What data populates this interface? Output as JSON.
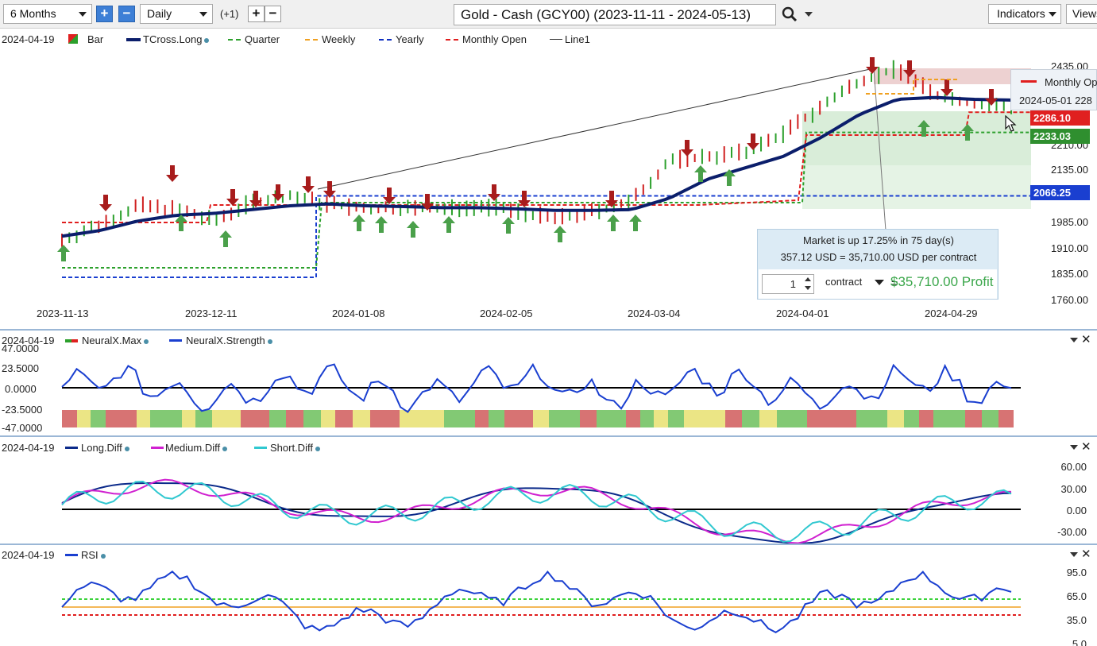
{
  "toolbar": {
    "range": "6 Months",
    "interval": "Daily",
    "offset": "(+1)",
    "symbol": "Gold - Cash (GCY00) (2023-11-11 - 2024-05-13)",
    "indicators": "Indicators",
    "view": "Views"
  },
  "main_legend": {
    "date": "2024-04-19",
    "items": [
      {
        "label": "Bar",
        "color": "#2ca02c"
      },
      {
        "label": "TCross.Long",
        "color": "#0b1e6b"
      },
      {
        "label": "Quarter",
        "color": "#2ca02c"
      },
      {
        "label": "Weekly",
        "color": "#f0a020"
      },
      {
        "label": "Yearly",
        "color": "#1030c0"
      },
      {
        "label": "Monthly Open",
        "color": "#e01e1e"
      },
      {
        "label": "Line1",
        "color": "#333333"
      }
    ]
  },
  "price_axis": [
    "2435.00",
    "2210.00",
    "2135.00",
    "1985.00",
    "1910.00",
    "1835.00",
    "1760.00"
  ],
  "price_badges": [
    {
      "value": "2286.10",
      "color": "#e02020"
    },
    {
      "value": "2233.03",
      "color": "#2f8f2f"
    },
    {
      "value": "2066.25",
      "color": "#1a3fd0"
    }
  ],
  "date_axis": [
    "2023-11-13",
    "2023-12-11",
    "2024-01-08",
    "2024-02-05",
    "2024-03-04",
    "2024-04-01",
    "2024-04-29"
  ],
  "info_box": {
    "line1": "Market is up 17.25% in 75 day(s)",
    "line2": "357.12 USD = 35,710.00 USD per contract",
    "quantity": "1",
    "unit": "contract",
    "equals": "=",
    "profit": "$35,710.00 Profit"
  },
  "monthly_popup": {
    "title": "Monthly Op",
    "line2": "2024-05-01  228"
  },
  "neural_pane": {
    "date": "2024-04-19",
    "series": [
      {
        "label": "NeuralX.Max",
        "color": "#2ca02c"
      },
      {
        "label": "NeuralX.Strength",
        "color": "#1a3fd0"
      }
    ],
    "axis": [
      "47.0000",
      "23.5000",
      "0.0000",
      "-23.5000",
      "-47.0000"
    ]
  },
  "diff_pane": {
    "date": "2024-04-19",
    "series": [
      {
        "label": "Long.Diff",
        "color": "#0b2a8a"
      },
      {
        "label": "Medium.Diff",
        "color": "#d020d0"
      },
      {
        "label": "Short.Diff",
        "color": "#30c8d0"
      }
    ],
    "axis": [
      "60.00",
      "30.00",
      "0.00",
      "-30.00"
    ]
  },
  "rsi_pane": {
    "date": "2024-04-19",
    "series": [
      {
        "label": "RSI",
        "color": "#1a3fd0"
      }
    ],
    "axis": [
      "95.0",
      "65.0",
      "35.0",
      "5.0"
    ]
  },
  "chart_data": {
    "type": "line",
    "title": "Gold - Cash (GCY00) (2023-11-11 - 2024-05-13)",
    "price": {
      "x": [
        "2023-11-13",
        "2023-11-20",
        "2023-11-27",
        "2023-12-04",
        "2023-12-11",
        "2023-12-18",
        "2023-12-26",
        "2024-01-02",
        "2024-01-08",
        "2024-01-15",
        "2024-01-22",
        "2024-01-29",
        "2024-02-05",
        "2024-02-12",
        "2024-02-20",
        "2024-02-26",
        "2024-03-04",
        "2024-03-11",
        "2024-03-18",
        "2024-03-25",
        "2024-04-01",
        "2024-04-08",
        "2024-04-15",
        "2024-04-22",
        "2024-04-29",
        "2024-05-06"
      ],
      "close": [
        1950,
        1990,
        2040,
        2030,
        2000,
        2050,
        2065,
        2045,
        2030,
        2035,
        2030,
        2040,
        2025,
        2005,
        2025,
        2050,
        2160,
        2170,
        2180,
        2230,
        2300,
        2370,
        2400,
        2330,
        2310,
        2300
      ],
      "tcross_long": [
        1960,
        1975,
        2000,
        2015,
        2020,
        2030,
        2040,
        2045,
        2040,
        2038,
        2035,
        2035,
        2032,
        2028,
        2028,
        2030,
        2060,
        2110,
        2140,
        2170,
        2220,
        2280,
        2320,
        2325,
        2320,
        2318
      ]
    },
    "levels": {
      "monthly_open": 2286.1,
      "quarter": 2233.03,
      "yearly": 2066.25
    },
    "ylim": [
      1760,
      2460
    ]
  }
}
